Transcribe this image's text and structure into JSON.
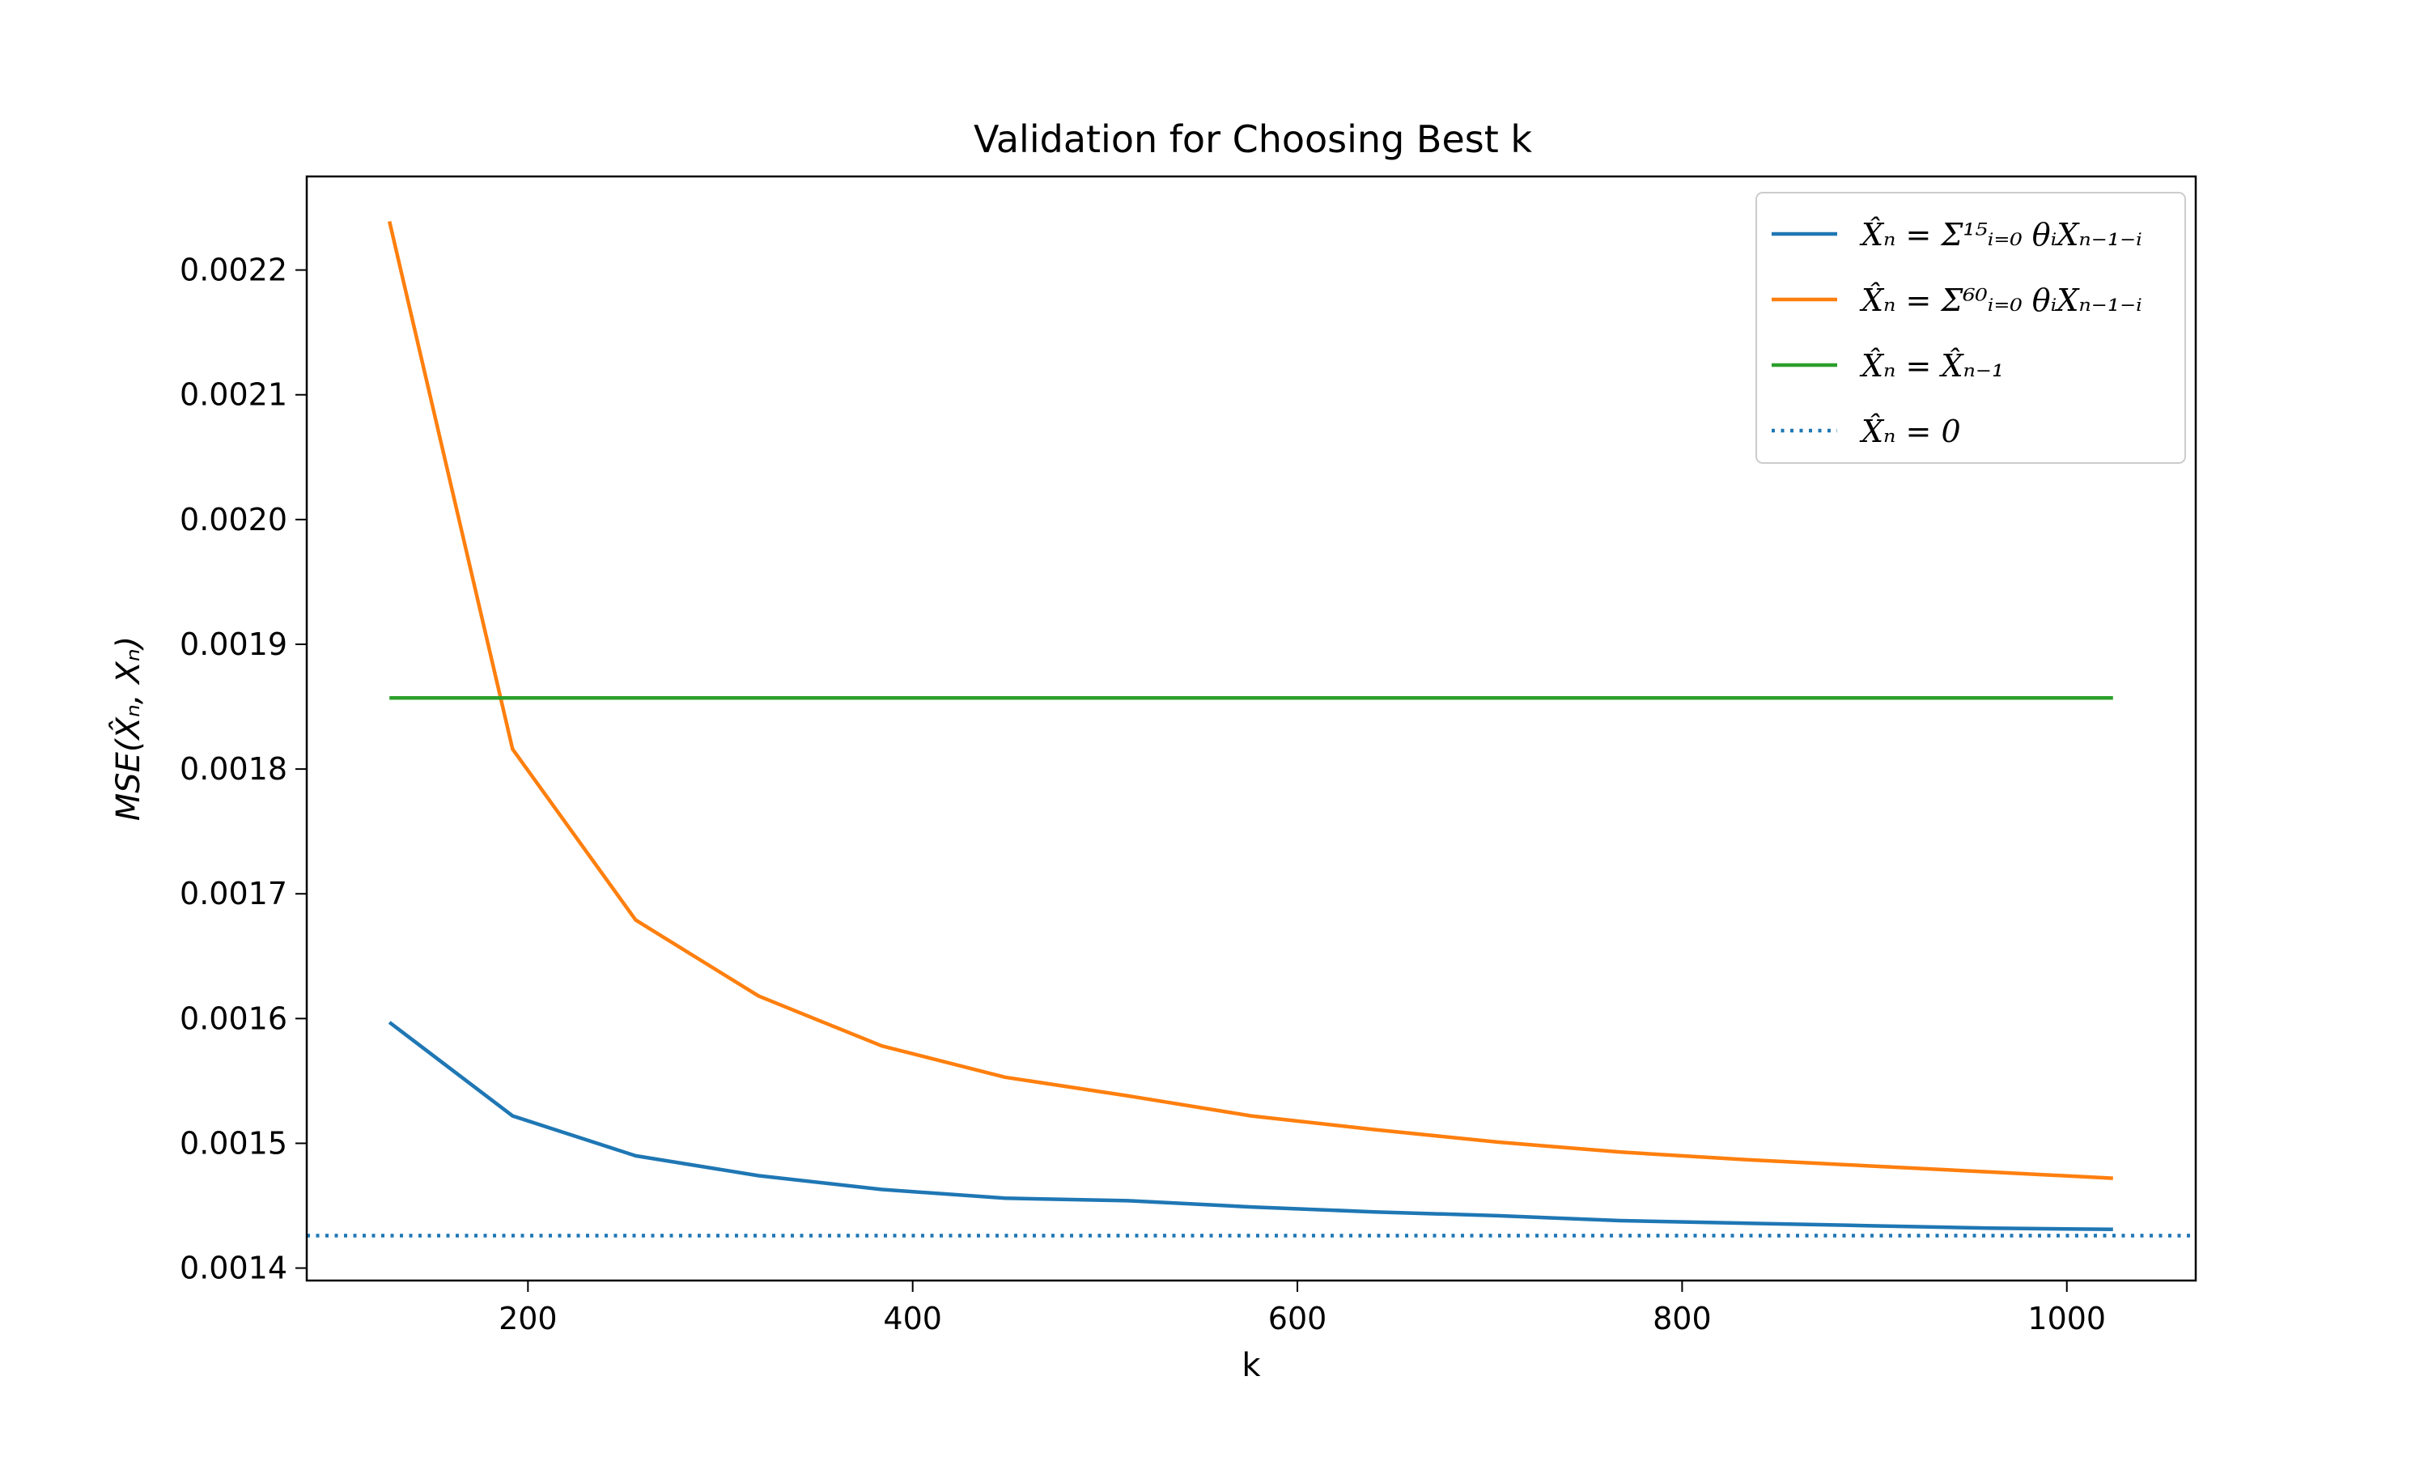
{
  "chart_data": {
    "type": "line",
    "title": "Validation for Choosing Best k",
    "xlabel": "k",
    "ylabel": "MSE(X̂ₙ, Xₙ)",
    "xlim": [
      85,
      1067
    ],
    "ylim": [
      0.00139,
      0.002275
    ],
    "xticks": [
      200,
      400,
      600,
      800,
      1000
    ],
    "yticks": [
      0.0014,
      0.0015,
      0.0016,
      0.0017,
      0.0018,
      0.0019,
      0.002,
      0.0021,
      0.0022
    ],
    "legend_position": "top-right",
    "grid": false,
    "series": [
      {
        "name": "X̂ₙ = Σ¹⁵ᵢ₌₀ θᵢXₙ₋₁₋ᵢ",
        "color": "#1f77b4",
        "style": "solid",
        "x": [
          128,
          192,
          256,
          320,
          384,
          448,
          512,
          576,
          640,
          704,
          768,
          832,
          896,
          960,
          1024
        ],
        "y": [
          0.001597,
          0.001522,
          0.00149,
          0.001474,
          0.001463,
          0.001456,
          0.001454,
          0.001449,
          0.001445,
          0.001442,
          0.001438,
          0.001436,
          0.001434,
          0.001432,
          0.001431
        ]
      },
      {
        "name": "X̂ₙ = Σ⁶⁰ᵢ₌₀ θᵢXₙ₋₁₋ᵢ",
        "color": "#ff7f0e",
        "style": "solid",
        "x": [
          128,
          192,
          256,
          320,
          384,
          448,
          512,
          576,
          640,
          704,
          768,
          832,
          896,
          960,
          1024
        ],
        "y": [
          0.002239,
          0.001816,
          0.001679,
          0.001618,
          0.001578,
          0.001553,
          0.001538,
          0.001522,
          0.001511,
          0.001501,
          0.001493,
          0.001487,
          0.001482,
          0.001477,
          0.001472
        ]
      },
      {
        "name": "X̂ₙ = X̂ₙ₋₁",
        "color": "#2ca02c",
        "style": "solid",
        "x": [
          128,
          1024
        ],
        "y": [
          0.001857,
          0.001857
        ]
      },
      {
        "name": "X̂ₙ = 0",
        "color": "#1f77b4",
        "style": "dotted",
        "x": [
          85,
          1067
        ],
        "y": [
          0.001426,
          0.001426
        ]
      }
    ]
  }
}
